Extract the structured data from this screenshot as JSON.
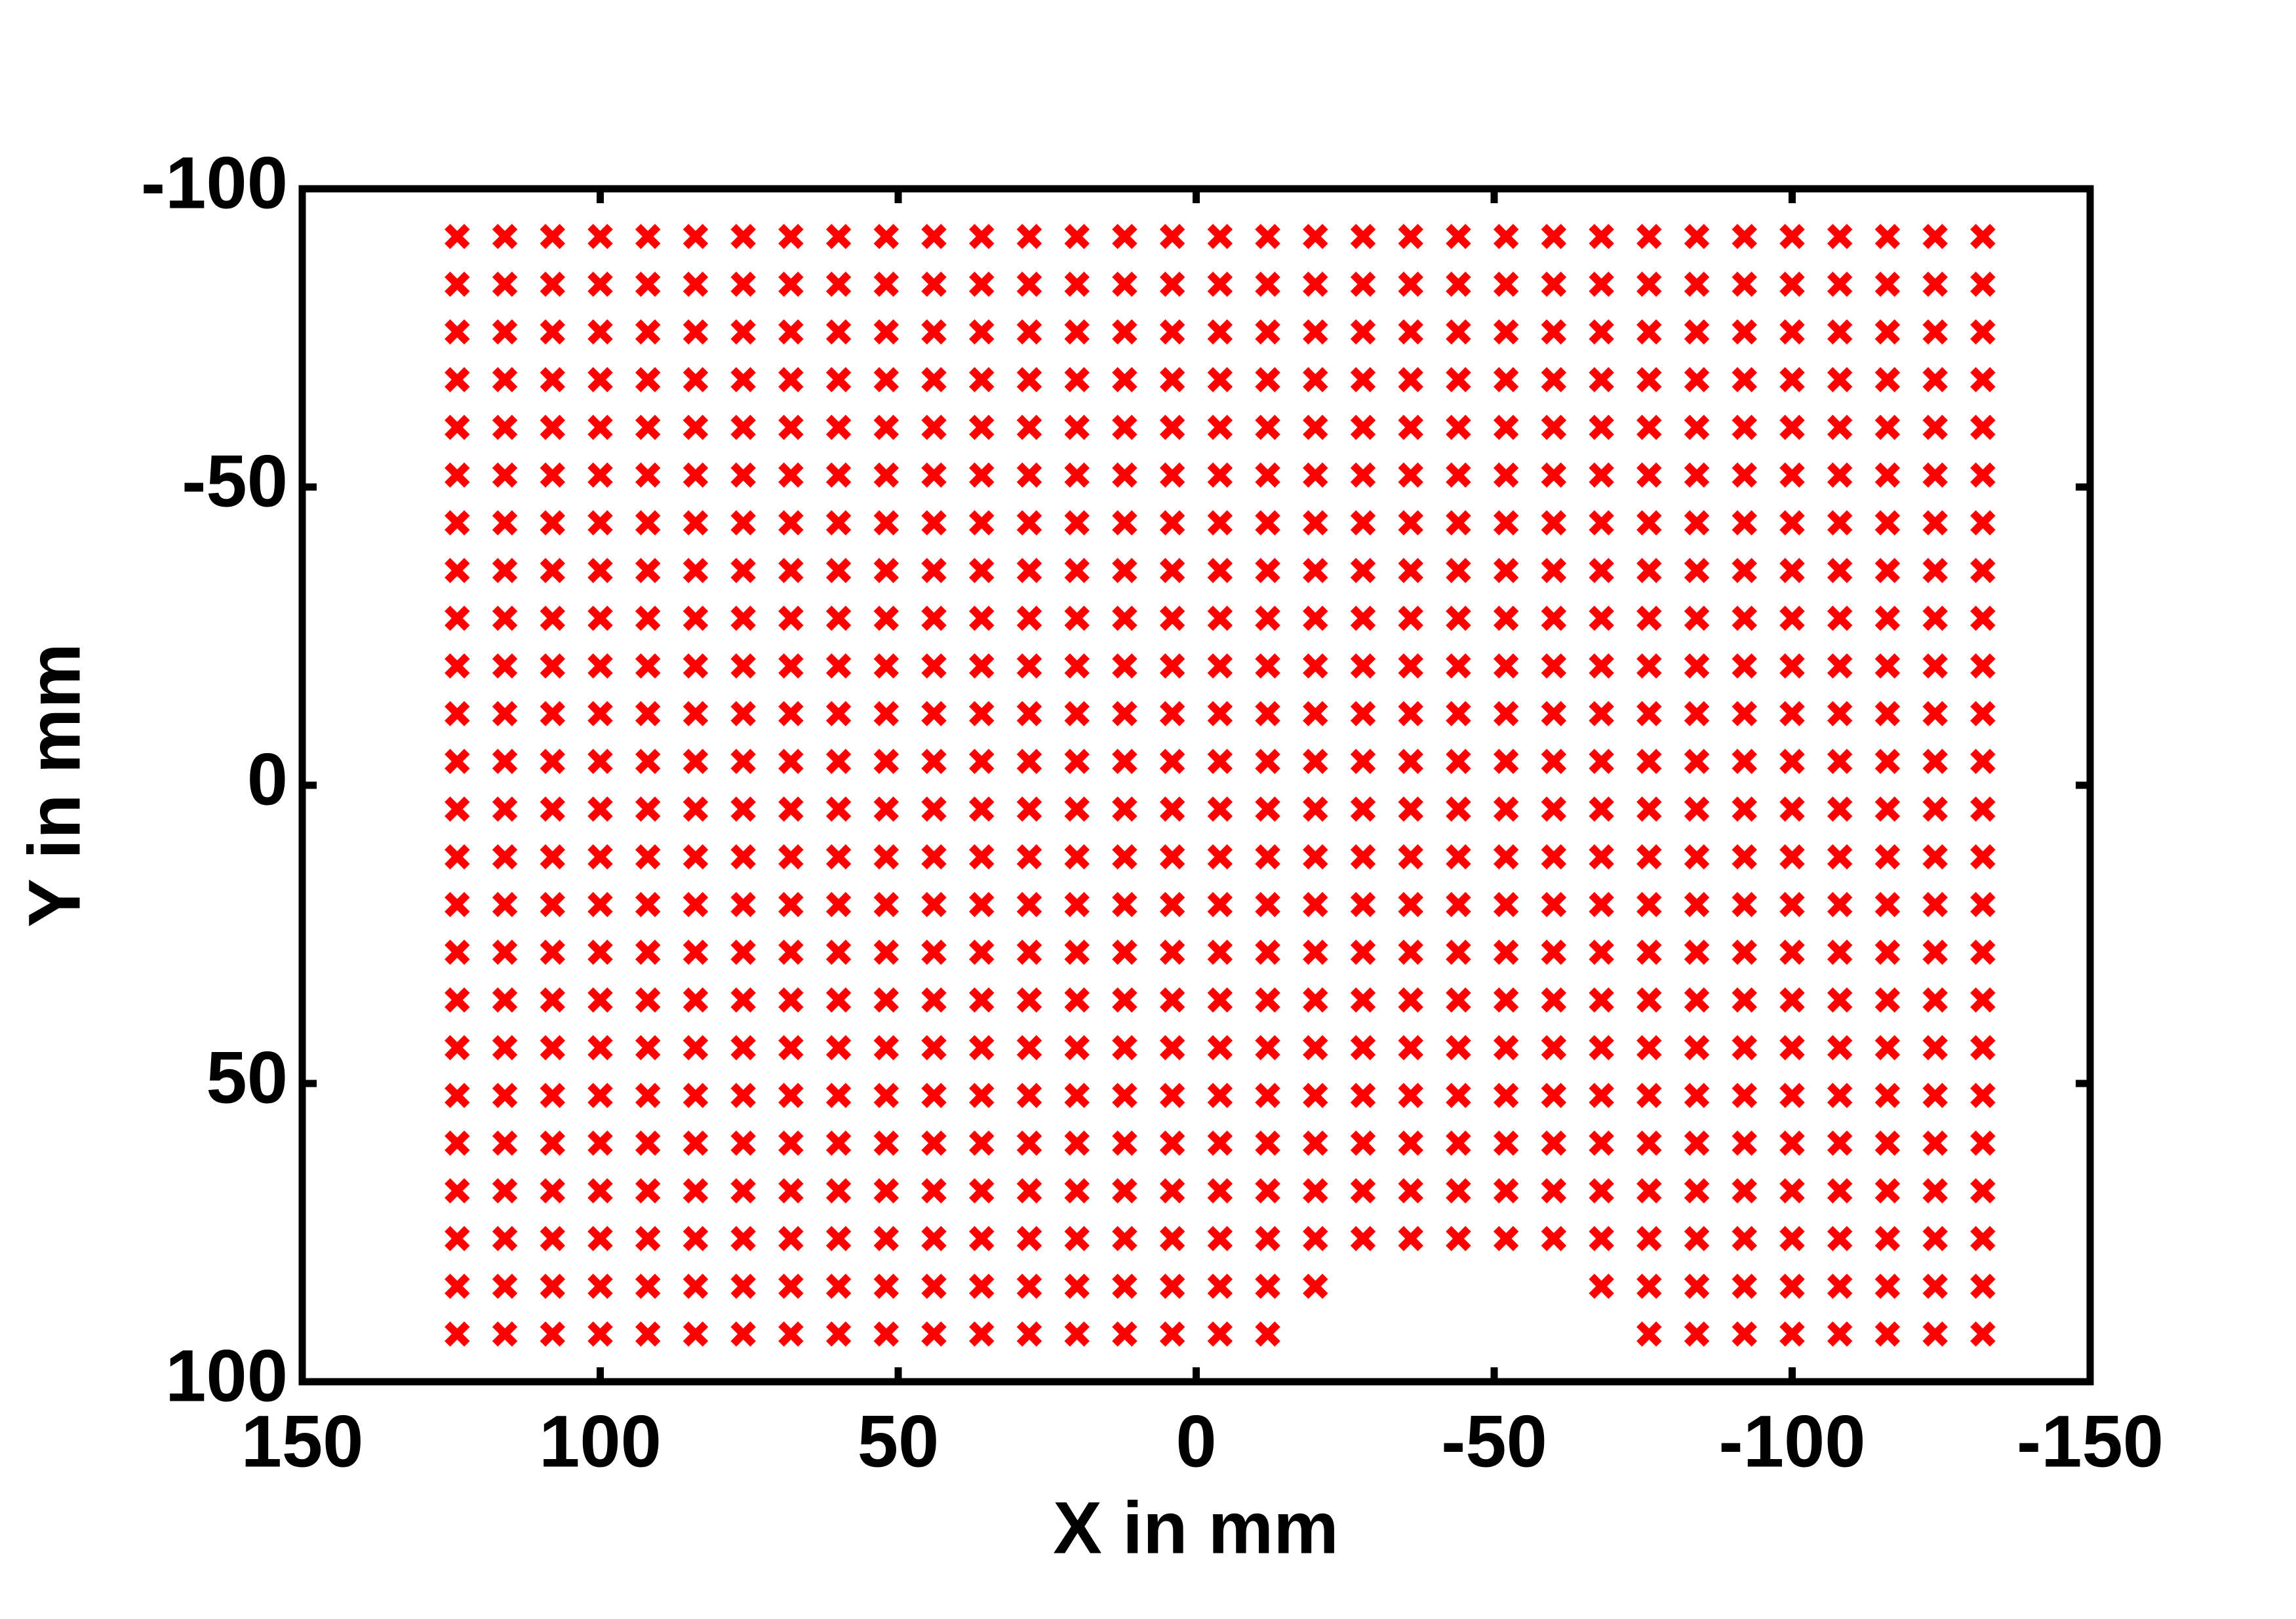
{
  "chart_data": {
    "type": "scatter",
    "xlabel": "X in mm",
    "ylabel": "Y in mm",
    "color": "#ff0000",
    "marker": "x",
    "xlim": [
      150,
      -150
    ],
    "ylim": [
      100,
      -100
    ],
    "xticks": [
      150,
      100,
      50,
      0,
      -50,
      -100,
      -150
    ],
    "yticks": [
      -100,
      -50,
      0,
      50,
      100
    ],
    "grid": false,
    "x": [
      124,
      116,
      108,
      100,
      92,
      84,
      76,
      68,
      60,
      52,
      44,
      36,
      28,
      20,
      12,
      4,
      -4,
      -12,
      -20,
      -28,
      -36,
      -44,
      -52,
      -60,
      -68,
      -76,
      -84,
      -92,
      -100,
      -108,
      -116,
      -124,
      -132,
      124,
      116,
      108,
      100,
      92,
      84,
      76,
      68,
      60,
      52,
      44,
      36,
      28,
      20,
      12,
      4,
      -4,
      -12,
      -20,
      -28,
      -36,
      -44,
      -52,
      -60,
      -68,
      -76,
      -84,
      -92,
      -100,
      -108,
      -116,
      -124,
      -132,
      124,
      116,
      108,
      100,
      92,
      84,
      76,
      68,
      60,
      52,
      44,
      36,
      28,
      20,
      12,
      4,
      -4,
      -12,
      -20,
      -28,
      -36,
      -44,
      -52,
      -60,
      -68,
      -76,
      -84,
      -92,
      -100,
      -108,
      -116,
      -124,
      -132,
      124,
      116,
      108,
      100,
      92,
      84,
      76,
      68,
      60,
      52,
      44,
      36,
      28,
      20,
      12,
      4,
      -4,
      -12,
      -20,
      -28,
      -36,
      -44,
      -52,
      -60,
      -68,
      -76,
      -84,
      -92,
      -100,
      -108,
      -116,
      -124,
      -132,
      124,
      116,
      108,
      100,
      92,
      84,
      76,
      68,
      60,
      52,
      44,
      36,
      28,
      20,
      12,
      4,
      -4,
      -12,
      -20,
      -28,
      -36,
      -44,
      -52,
      -60,
      -68,
      -76,
      -84,
      -92,
      -100,
      -108,
      -116,
      -124,
      -132,
      124,
      116,
      108,
      100,
      92,
      84,
      76,
      68,
      60,
      52,
      44,
      36,
      28,
      20,
      12,
      4,
      -4,
      -12,
      -20,
      -28,
      -36,
      -44,
      -52,
      -60,
      -68,
      -76,
      -84,
      -92,
      -100,
      -108,
      -116,
      -124,
      -132,
      124,
      116,
      108,
      100,
      92,
      84,
      76,
      68,
      60,
      52,
      44,
      36,
      28,
      20,
      12,
      4,
      -4,
      -12,
      -20,
      -28,
      -36,
      -44,
      -52,
      -60,
      -68,
      -76,
      -84,
      -92,
      -100,
      -108,
      -116,
      -124,
      -132,
      124,
      116,
      108,
      100,
      92,
      84,
      76,
      68,
      60,
      52,
      44,
      36,
      28,
      20,
      12,
      4,
      -4,
      -12,
      -20,
      -28,
      -36,
      -44,
      -52,
      -60,
      -68,
      -76,
      -84,
      -92,
      -100,
      -108,
      -116,
      -124,
      -132,
      124,
      116,
      108,
      100,
      92,
      84,
      76,
      68,
      60,
      52,
      44,
      36,
      28,
      20,
      12,
      4,
      -4,
      -12,
      -20,
      -28,
      -36,
      -44,
      -52,
      -60,
      -68,
      -76,
      -84,
      -92,
      -100,
      -108,
      -116,
      -124,
      -132,
      124,
      116,
      108,
      100,
      92,
      84,
      76,
      68,
      60,
      52,
      44,
      36,
      28,
      20,
      12,
      4,
      -4,
      -12,
      -20,
      -28,
      -36,
      -44,
      -52,
      -60,
      -68,
      -76,
      -84,
      -92,
      -100,
      -108,
      -116,
      -124,
      -132,
      124,
      116,
      108,
      100,
      92,
      84,
      76,
      68,
      60,
      52,
      44,
      36,
      28,
      20,
      12,
      4,
      -4,
      -12,
      -20,
      -28,
      -36,
      -44,
      -52,
      -60,
      -68,
      -76,
      -84,
      -92,
      -100,
      -108,
      -116,
      -124,
      -132,
      124,
      116,
      108,
      100,
      92,
      84,
      76,
      68,
      60,
      52,
      44,
      36,
      28,
      20,
      12,
      4,
      -4,
      -12,
      -20,
      -28,
      -36,
      -44,
      -52,
      -60,
      -68,
      -76,
      -84,
      -92,
      -100,
      -108,
      -116,
      -124,
      -132,
      124,
      116,
      108,
      100,
      92,
      84,
      76,
      68,
      60,
      52,
      44,
      36,
      28,
      20,
      12,
      4,
      -4,
      -12,
      -20,
      -28,
      -36,
      -44,
      -52,
      -60,
      -68,
      -76,
      -84,
      -92,
      -100,
      -108,
      -116,
      -124,
      -132,
      124,
      116,
      108,
      100,
      92,
      84,
      76,
      68,
      60,
      52,
      44,
      36,
      28,
      20,
      12,
      4,
      -4,
      -12,
      -20,
      -28,
      -36,
      -44,
      -52,
      -60,
      -68,
      -76,
      -84,
      -92,
      -100,
      -108,
      -116,
      -124,
      -132,
      124,
      116,
      108,
      100,
      92,
      84,
      76,
      68,
      60,
      52,
      44,
      36,
      28,
      20,
      12,
      4,
      -4,
      -12,
      -20,
      -28,
      -36,
      -44,
      -52,
      -60,
      -68,
      -76,
      -84,
      -92,
      -100,
      -108,
      -116,
      -124,
      -132,
      124,
      116,
      108,
      100,
      92,
      84,
      76,
      68,
      60,
      52,
      44,
      36,
      28,
      20,
      12,
      4,
      -4,
      -12,
      -20,
      -28,
      -36,
      -44,
      -52,
      -60,
      -68,
      -76,
      -84,
      -92,
      -100,
      -108,
      -116,
      -124,
      -132,
      124,
      116,
      108,
      100,
      92,
      84,
      76,
      68,
      60,
      52,
      44,
      36,
      28,
      20,
      12,
      4,
      -4,
      -12,
      -20,
      -28,
      -36,
      -44,
      -52,
      -60,
      -68,
      -76,
      -84,
      -92,
      -100,
      -108,
      -116,
      -124,
      -132,
      124,
      116,
      108,
      100,
      92,
      84,
      76,
      68,
      60,
      52,
      44,
      36,
      28,
      20,
      12,
      4,
      -4,
      -12,
      -20,
      -28,
      -36,
      -44,
      -52,
      -60,
      -68,
      -76,
      -84,
      -92,
      -100,
      -108,
      -116,
      -124,
      -132,
      124,
      116,
      108,
      100,
      92,
      84,
      76,
      68,
      60,
      52,
      44,
      36,
      28,
      20,
      12,
      4,
      -4,
      -12,
      -20,
      -28,
      -36,
      -44,
      -52,
      -60,
      -68,
      -76,
      -84,
      -92,
      -100,
      -108,
      -116,
      -124,
      -132,
      124,
      116,
      108,
      100,
      92,
      84,
      76,
      68,
      60,
      52,
      44,
      36,
      28,
      20,
      12,
      4,
      -4,
      -12,
      -20,
      -28,
      -36,
      -44,
      -52,
      -60,
      -68,
      -76,
      -84,
      -92,
      -100,
      -108,
      -116,
      -124,
      -132,
      124,
      116,
      108,
      100,
      92,
      84,
      76,
      68,
      60,
      52,
      44,
      36,
      28,
      20,
      12,
      4,
      -4,
      -12,
      -20,
      -28,
      -36,
      -44,
      -52,
      -60,
      -68,
      -76,
      -84,
      -92,
      -100,
      -108,
      -116,
      -124,
      -132,
      124,
      116,
      108,
      100,
      92,
      84,
      76,
      68,
      60,
      52,
      44,
      36,
      28,
      20,
      12,
      4,
      -4,
      -12,
      -20,
      -28,
      -36,
      -44,
      -52,
      -60,
      -68,
      -76,
      -84,
      -92,
      -100,
      -108,
      -116,
      -124,
      -132,
      124,
      116,
      108,
      100,
      92,
      84,
      76,
      68,
      60,
      52,
      44,
      36,
      28,
      20,
      12,
      4,
      -4,
      -12,
      -20,
      -68,
      -76,
      -84,
      -92,
      -100,
      -108,
      -116,
      -124,
      -132,
      124,
      116,
      108,
      100,
      92,
      84,
      76,
      68,
      60,
      52,
      44,
      36,
      28,
      20,
      12,
      4,
      -4,
      -12,
      -76,
      -84,
      -92,
      -100,
      -108,
      -116,
      -124,
      -132
    ],
    "values": [
      -92,
      -92,
      -92,
      -92,
      -92,
      -92,
      -92,
      -92,
      -92,
      -92,
      -92,
      -92,
      -92,
      -92,
      -92,
      -92,
      -92,
      -92,
      -92,
      -92,
      -92,
      -92,
      -92,
      -92,
      -92,
      -92,
      -92,
      -92,
      -92,
      -92,
      -92,
      -92,
      -92,
      -84,
      -84,
      -84,
      -84,
      -84,
      -84,
      -84,
      -84,
      -84,
      -84,
      -84,
      -84,
      -84,
      -84,
      -84,
      -84,
      -84,
      -84,
      -84,
      -84,
      -84,
      -84,
      -84,
      -84,
      -84,
      -84,
      -84,
      -84,
      -84,
      -84,
      -84,
      -84,
      -84,
      -76,
      -76,
      -76,
      -76,
      -76,
      -76,
      -76,
      -76,
      -76,
      -76,
      -76,
      -76,
      -76,
      -76,
      -76,
      -76,
      -76,
      -76,
      -76,
      -76,
      -76,
      -76,
      -76,
      -76,
      -76,
      -76,
      -76,
      -76,
      -76,
      -76,
      -76,
      -76,
      -76,
      -68,
      -68,
      -68,
      -68,
      -68,
      -68,
      -68,
      -68,
      -68,
      -68,
      -68,
      -68,
      -68,
      -68,
      -68,
      -68,
      -68,
      -68,
      -68,
      -68,
      -68,
      -68,
      -68,
      -68,
      -68,
      -68,
      -68,
      -68,
      -68,
      -68,
      -68,
      -68,
      -68,
      -60,
      -60,
      -60,
      -60,
      -60,
      -60,
      -60,
      -60,
      -60,
      -60,
      -60,
      -60,
      -60,
      -60,
      -60,
      -60,
      -60,
      -60,
      -60,
      -60,
      -60,
      -60,
      -60,
      -60,
      -60,
      -60,
      -60,
      -60,
      -60,
      -60,
      -60,
      -60,
      -60,
      -52,
      -52,
      -52,
      -52,
      -52,
      -52,
      -52,
      -52,
      -52,
      -52,
      -52,
      -52,
      -52,
      -52,
      -52,
      -52,
      -52,
      -52,
      -52,
      -52,
      -52,
      -52,
      -52,
      -52,
      -52,
      -52,
      -52,
      -52,
      -52,
      -52,
      -52,
      -52,
      -52,
      -44,
      -44,
      -44,
      -44,
      -44,
      -44,
      -44,
      -44,
      -44,
      -44,
      -44,
      -44,
      -44,
      -44,
      -44,
      -44,
      -44,
      -44,
      -44,
      -44,
      -44,
      -44,
      -44,
      -44,
      -44,
      -44,
      -44,
      -44,
      -44,
      -44,
      -44,
      -44,
      -44,
      -36,
      -36,
      -36,
      -36,
      -36,
      -36,
      -36,
      -36,
      -36,
      -36,
      -36,
      -36,
      -36,
      -36,
      -36,
      -36,
      -36,
      -36,
      -36,
      -36,
      -36,
      -36,
      -36,
      -36,
      -36,
      -36,
      -36,
      -36,
      -36,
      -36,
      -36,
      -36,
      -36,
      -28,
      -28,
      -28,
      -28,
      -28,
      -28,
      -28,
      -28,
      -28,
      -28,
      -28,
      -28,
      -28,
      -28,
      -28,
      -28,
      -28,
      -28,
      -28,
      -28,
      -28,
      -28,
      -28,
      -28,
      -28,
      -28,
      -28,
      -28,
      -28,
      -28,
      -28,
      -28,
      -28,
      -20,
      -20,
      -20,
      -20,
      -20,
      -20,
      -20,
      -20,
      -20,
      -20,
      -20,
      -20,
      -20,
      -20,
      -20,
      -20,
      -20,
      -20,
      -20,
      -20,
      -20,
      -20,
      -20,
      -20,
      -20,
      -20,
      -20,
      -20,
      -20,
      -20,
      -20,
      -20,
      -20,
      -12,
      -12,
      -12,
      -12,
      -12,
      -12,
      -12,
      -12,
      -12,
      -12,
      -12,
      -12,
      -12,
      -12,
      -12,
      -12,
      -12,
      -12,
      -12,
      -12,
      -12,
      -12,
      -12,
      -12,
      -12,
      -12,
      -12,
      -12,
      -12,
      -12,
      -12,
      -12,
      -12,
      -4,
      -4,
      -4,
      -4,
      -4,
      -4,
      -4,
      -4,
      -4,
      -4,
      -4,
      -4,
      -4,
      -4,
      -4,
      -4,
      -4,
      -4,
      -4,
      -4,
      -4,
      -4,
      -4,
      -4,
      -4,
      -4,
      -4,
      -4,
      -4,
      -4,
      -4,
      -4,
      -4,
      4,
      4,
      4,
      4,
      4,
      4,
      4,
      4,
      4,
      4,
      4,
      4,
      4,
      4,
      4,
      4,
      4,
      4,
      4,
      4,
      4,
      4,
      4,
      4,
      4,
      4,
      4,
      4,
      4,
      4,
      4,
      4,
      4,
      12,
      12,
      12,
      12,
      12,
      12,
      12,
      12,
      12,
      12,
      12,
      12,
      12,
      12,
      12,
      12,
      12,
      12,
      12,
      12,
      12,
      12,
      12,
      12,
      12,
      12,
      12,
      12,
      12,
      12,
      12,
      12,
      12,
      20,
      20,
      20,
      20,
      20,
      20,
      20,
      20,
      20,
      20,
      20,
      20,
      20,
      20,
      20,
      20,
      20,
      20,
      20,
      20,
      20,
      20,
      20,
      20,
      20,
      20,
      20,
      20,
      20,
      20,
      20,
      20,
      20,
      28,
      28,
      28,
      28,
      28,
      28,
      28,
      28,
      28,
      28,
      28,
      28,
      28,
      28,
      28,
      28,
      28,
      28,
      28,
      28,
      28,
      28,
      28,
      28,
      28,
      28,
      28,
      28,
      28,
      28,
      28,
      28,
      28,
      36,
      36,
      36,
      36,
      36,
      36,
      36,
      36,
      36,
      36,
      36,
      36,
      36,
      36,
      36,
      36,
      36,
      36,
      36,
      36,
      36,
      36,
      36,
      36,
      36,
      36,
      36,
      36,
      36,
      36,
      36,
      36,
      36,
      44,
      44,
      44,
      44,
      44,
      44,
      44,
      44,
      44,
      44,
      44,
      44,
      44,
      44,
      44,
      44,
      44,
      44,
      44,
      44,
      44,
      44,
      44,
      44,
      44,
      44,
      44,
      44,
      44,
      44,
      44,
      44,
      44,
      52,
      52,
      52,
      52,
      52,
      52,
      52,
      52,
      52,
      52,
      52,
      52,
      52,
      52,
      52,
      52,
      52,
      52,
      52,
      52,
      52,
      52,
      52,
      52,
      52,
      52,
      52,
      52,
      52,
      52,
      52,
      52,
      52,
      60,
      60,
      60,
      60,
      60,
      60,
      60,
      60,
      60,
      60,
      60,
      60,
      60,
      60,
      60,
      60,
      60,
      60,
      60,
      60,
      60,
      60,
      60,
      60,
      60,
      60,
      60,
      60,
      60,
      60,
      60,
      60,
      60,
      68,
      68,
      68,
      68,
      68,
      68,
      68,
      68,
      68,
      68,
      68,
      68,
      68,
      68,
      68,
      68,
      68,
      68,
      68,
      68,
      68,
      68,
      68,
      68,
      68,
      68,
      68,
      68,
      68,
      68,
      68,
      68,
      68,
      76,
      76,
      76,
      76,
      76,
      76,
      76,
      76,
      76,
      76,
      76,
      76,
      76,
      76,
      76,
      76,
      76,
      76,
      76,
      76,
      76,
      76,
      76,
      76,
      76,
      76,
      76,
      76,
      76,
      76,
      76,
      76,
      76,
      84,
      84,
      84,
      84,
      84,
      84,
      84,
      84,
      84,
      84,
      84,
      84,
      84,
      84,
      84,
      84,
      84,
      84,
      84,
      84,
      84,
      84,
      84,
      84,
      84,
      84,
      84,
      84,
      92,
      92,
      92,
      92,
      92,
      92,
      92,
      92,
      92,
      92,
      92,
      92,
      92,
      92,
      92,
      92,
      92,
      92,
      92,
      92,
      92,
      92,
      92,
      92,
      92,
      92
    ]
  }
}
